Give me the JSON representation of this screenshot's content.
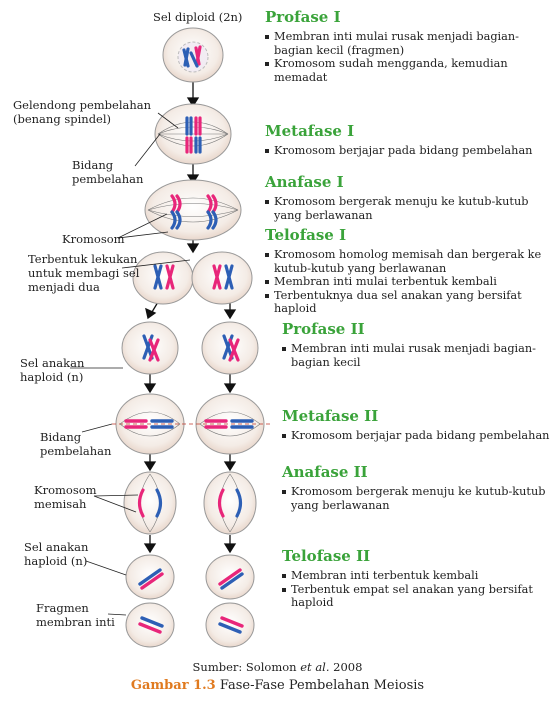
{
  "labels": {
    "diploid": "Sel diploid (2n)",
    "spindle": "Gelendong pembelahan\n(benang spindel)",
    "plane1": "Bidang\npembelahan",
    "chromosome": "Kromosom",
    "cleft": "Terbentuk lekukan\nuntuk membagi sel\nmenjadi dua",
    "haploid1": "Sel anakan\nhaploid (n)",
    "plane2": "Bidang\npembelahan",
    "separate": "Kromosom\nmemisah",
    "haploid2": "Sel anakan\nhaploid (n)",
    "fragment": "Fragmen\nmembran inti"
  },
  "phases": [
    {
      "title": "Profase I",
      "items": [
        "Membran inti mulai rusak menjadi bagian-bagian kecil (fragmen)",
        "Kromosom  sudah mengganda, kemudian memadat"
      ]
    },
    {
      "title": "Metafase I",
      "items": [
        "Kromosom berjajar pada bidang pembelahan"
      ]
    },
    {
      "title": "Anafase I",
      "items": [
        "Kromosom bergerak menuju ke kutub-kutub yang berlawanan"
      ]
    },
    {
      "title": "Telofase I",
      "items": [
        "Kromosom homolog memisah dan bergerak ke kutub-kutub yang berlawanan",
        "Membran inti mulai terbentuk kembali",
        "Terbentuknya dua sel anakan yang bersifat haploid"
      ]
    },
    {
      "title": "Profase II",
      "items": [
        "Membran inti mulai rusak menjadi bagian-bagian kecil"
      ]
    },
    {
      "title": "Metafase II",
      "items": [
        "Kromosom berjajar pada bidang pembelahan"
      ]
    },
    {
      "title": "Anafase II",
      "items": [
        "Kromosom bergerak menuju ke kutub-kutub yang berlawanan"
      ]
    },
    {
      "title": "Telofase II",
      "items": [
        "Membran inti terbentuk kembali",
        "Terbentuk empat sel anakan yang bersifat haploid"
      ]
    }
  ],
  "source": {
    "prefix": "Sumber: Solomon ",
    "italic": "et al.",
    "suffix": " 2008"
  },
  "caption": {
    "number": "Gambar 1.3",
    "text": " Fase-Fase Pembelahan Meiosis"
  },
  "colors": {
    "title": "#3aa33a",
    "caption_number": "#e07a1f",
    "chrom_red": "#e8267a",
    "chrom_blue": "#2d5fb5"
  }
}
